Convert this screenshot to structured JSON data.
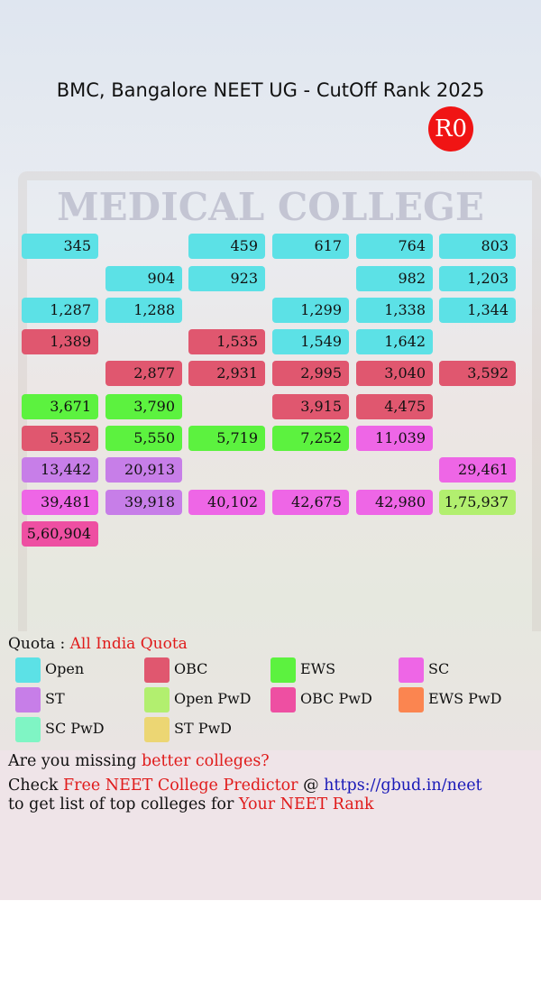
{
  "header": {
    "title": "BMC, Bangalore NEET UG - CutOff Rank 2025",
    "badge": "R0"
  },
  "background": {
    "label": "MEDICAL COLLEGE"
  },
  "grid": {
    "rows": [
      [
        {
          "label": "345",
          "color": "#5ce1e6"
        },
        null,
        {
          "label": "459",
          "color": "#5ce1e6"
        },
        {
          "label": "617",
          "color": "#5ce1e6"
        },
        {
          "label": "764",
          "color": "#5ce1e6"
        },
        {
          "label": "803",
          "color": "#5ce1e6"
        }
      ],
      [
        null,
        {
          "label": "904",
          "color": "#5ce1e6"
        },
        {
          "label": "923",
          "color": "#5ce1e6"
        },
        null,
        {
          "label": "982",
          "color": "#5ce1e6"
        },
        {
          "label": "1,203",
          "color": "#5ce1e6"
        }
      ],
      [
        {
          "label": "1,287",
          "color": "#5ce1e6"
        },
        {
          "label": "1,288",
          "color": "#5ce1e6"
        },
        null,
        {
          "label": "1,299",
          "color": "#5ce1e6"
        },
        {
          "label": "1,338",
          "color": "#5ce1e6"
        },
        {
          "label": "1,344",
          "color": "#5ce1e6"
        }
      ],
      [
        {
          "label": "1,389",
          "color": "#e0576f"
        },
        null,
        {
          "label": "1,535",
          "color": "#e0576f"
        },
        {
          "label": "1,549",
          "color": "#5ce1e6"
        },
        {
          "label": "1,642",
          "color": "#5ce1e6"
        },
        null
      ],
      [
        null,
        {
          "label": "2,877",
          "color": "#e0576f"
        },
        {
          "label": "2,931",
          "color": "#e0576f"
        },
        {
          "label": "2,995",
          "color": "#e0576f"
        },
        {
          "label": "3,040",
          "color": "#e0576f"
        },
        {
          "label": "3,592",
          "color": "#e0576f"
        }
      ],
      [
        {
          "label": "3,671",
          "color": "#5cf23f"
        },
        {
          "label": "3,790",
          "color": "#5cf23f"
        },
        null,
        {
          "label": "3,915",
          "color": "#e0576f"
        },
        {
          "label": "4,475",
          "color": "#e0576f"
        },
        null
      ],
      [
        {
          "label": "5,352",
          "color": "#e0576f"
        },
        {
          "label": "5,550",
          "color": "#5cf23f"
        },
        {
          "label": "5,719",
          "color": "#5cf23f"
        },
        {
          "label": "7,252",
          "color": "#5cf23f"
        },
        {
          "label": "11,039",
          "color": "#ee66e6"
        },
        null
      ],
      [
        {
          "label": "13,442",
          "color": "#c77ee8"
        },
        {
          "label": "20,913",
          "color": "#c77ee8"
        },
        null,
        null,
        null,
        {
          "label": "29,461",
          "color": "#ee66e6"
        }
      ],
      [
        {
          "label": "39,481",
          "color": "#ee66e6"
        },
        {
          "label": "39,918",
          "color": "#c77ee8"
        },
        {
          "label": "40,102",
          "color": "#ee66e6"
        },
        {
          "label": "42,675",
          "color": "#ee66e6"
        },
        {
          "label": "42,980",
          "color": "#ee66e6"
        },
        {
          "label": "1,75,937",
          "color": "#b2ef6f"
        }
      ],
      [
        {
          "label": "5,60,904",
          "color": "#ee4fa2"
        },
        null,
        null,
        null,
        null,
        null
      ]
    ]
  },
  "quota": {
    "label": "Quota :",
    "value": "All India Quota"
  },
  "legend": [
    {
      "name": "Open",
      "color": "#5ce1e6"
    },
    {
      "name": "OBC",
      "color": "#e0576f"
    },
    {
      "name": "EWS",
      "color": "#5cf23f"
    },
    {
      "name": "SC",
      "color": "#ee66e6"
    },
    {
      "name": "ST",
      "color": "#c77ee8"
    },
    {
      "name": "Open PwD",
      "color": "#b2ef6f"
    },
    {
      "name": "OBC PwD",
      "color": "#ee4fa2"
    },
    {
      "name": "EWS PwD",
      "color": "#fb8550"
    },
    {
      "name": "SC PwD",
      "color": "#7ff5c4"
    },
    {
      "name": "ST PwD",
      "color": "#ecd673"
    }
  ],
  "footer": {
    "lines": [
      [
        {
          "text": "Are you missing ",
          "style": "plain"
        },
        {
          "text": "better colleges?",
          "style": "red"
        }
      ],
      [
        {
          "text": "Check ",
          "style": "plain"
        },
        {
          "text": "Free NEET College Predictor",
          "style": "red"
        },
        {
          "text": " @ ",
          "style": "plain"
        },
        {
          "text": "https://gbud.in/neet",
          "style": "blue"
        }
      ],
      [
        {
          "text": "to get list of top colleges for ",
          "style": "plain"
        },
        {
          "text": "Your NEET Rank",
          "style": "red"
        }
      ]
    ]
  }
}
